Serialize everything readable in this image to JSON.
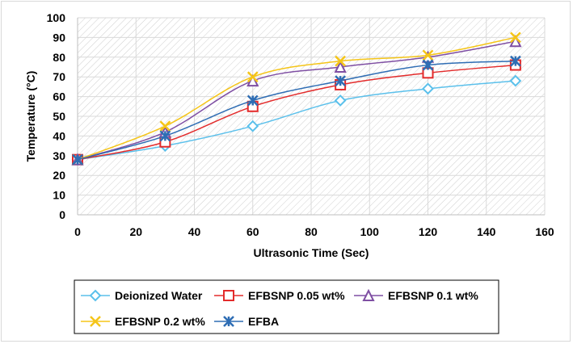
{
  "chart_data": {
    "type": "line",
    "xlabel": "Ultrasonic Time (Sec)",
    "ylabel": "Temperature (°C)",
    "xlim": [
      0,
      160
    ],
    "ylim": [
      0,
      100
    ],
    "xticks": [
      0,
      20,
      40,
      60,
      80,
      100,
      120,
      140,
      160
    ],
    "yticks": [
      0,
      10,
      20,
      30,
      40,
      50,
      60,
      70,
      80,
      90,
      100
    ],
    "grid": true,
    "smooth": true,
    "plot_background": "diagonal-hatch",
    "legend_position": "bottom",
    "x": [
      0,
      30,
      60,
      90,
      120,
      150
    ],
    "series": [
      {
        "name": "Deionized Water",
        "values": [
          28,
          35,
          45,
          58,
          64,
          68
        ],
        "color": "#5bc0eb",
        "marker": "diamond"
      },
      {
        "name": "EFBSNP 0.05 wt%",
        "values": [
          28,
          37,
          55,
          66,
          72,
          76
        ],
        "color": "#e32b2b",
        "marker": "square"
      },
      {
        "name": "EFBSNP 0.1 wt%",
        "values": [
          28,
          42,
          68,
          75,
          80,
          88
        ],
        "color": "#7f4fa3",
        "marker": "triangle"
      },
      {
        "name": "EFBSNP 0.2 wt%",
        "values": [
          28,
          45,
          70,
          78,
          81,
          90
        ],
        "color": "#f5c518",
        "marker": "x"
      },
      {
        "name": "EFBA",
        "values": [
          28,
          40,
          58,
          68,
          76,
          78
        ],
        "color": "#2e6db4",
        "marker": "star"
      }
    ]
  }
}
